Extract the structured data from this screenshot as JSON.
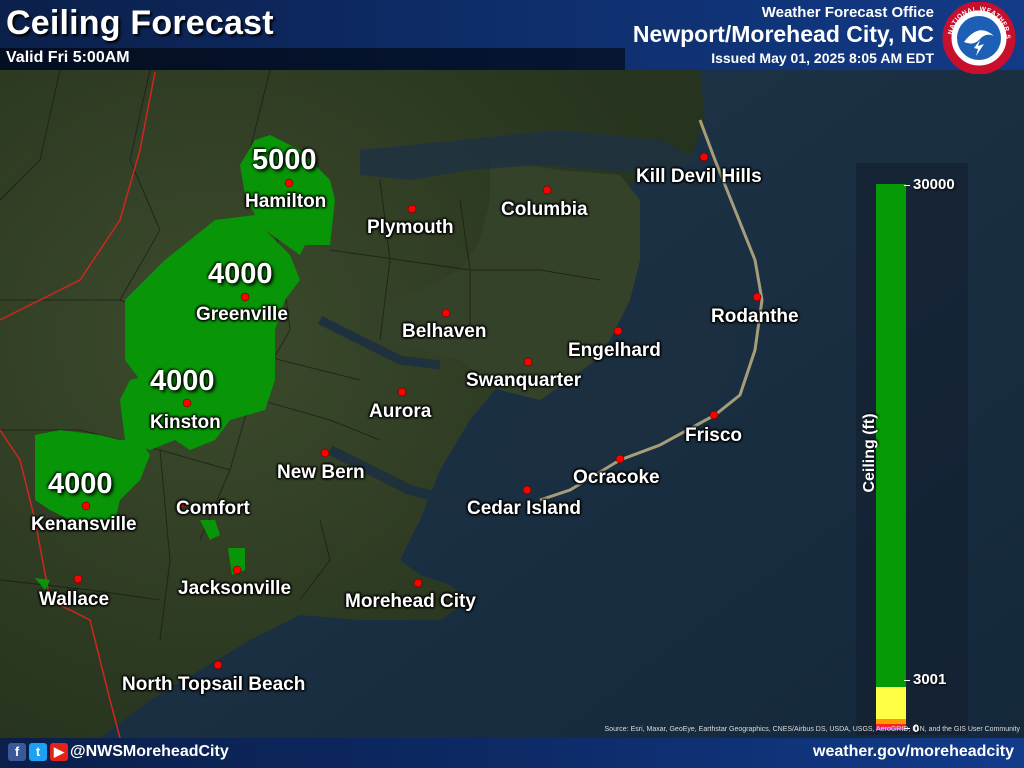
{
  "header": {
    "title": "Ceiling Forecast",
    "valid": "Valid Fri 5:00AM",
    "office_line": "Weather Forecast Office",
    "office_name": "Newport/Morehead City, NC",
    "issued": "Issued May 01, 2025 8:05 AM EDT",
    "logo_text": "NATIONAL WEATHER SERVICE"
  },
  "legend": {
    "title": "Ceiling (ft)",
    "labels": {
      "top": "30000",
      "mid": "3001",
      "bottom": "0"
    },
    "colors": {
      "high": "#079a07",
      "mid_low": "#ffff44",
      "low": "#ff9900",
      "very_low": "#ff2222",
      "lowest": "#cc33cc"
    }
  },
  "cities": [
    "Hamilton",
    "Plymouth",
    "Columbia",
    "Kill Devil Hills",
    "Greenville",
    "Belhaven",
    "Engelhard",
    "Rodanthe",
    "Swanquarter",
    "Aurora",
    "Kinston",
    "Frisco",
    "New Bern",
    "Ocracoke",
    "Kenansville",
    "Comfort",
    "Cedar Island",
    "Jacksonville",
    "Wallace",
    "Morehead City",
    "North Topsail Beach"
  ],
  "ceilings": [
    {
      "city": "Hamilton",
      "value": "5000"
    },
    {
      "city": "Greenville",
      "value": "4000"
    },
    {
      "city": "Kinston",
      "value": "4000"
    },
    {
      "city": "Kenansville",
      "value": "4000"
    }
  ],
  "colors": {
    "forecast_fill": "#079a07",
    "city_dot": "#ff0000",
    "header": "#0d2a66"
  },
  "footer": {
    "handle": "@NWSMoreheadCity",
    "website": "weather.gov/moreheadcity",
    "icons": [
      "facebook-icon",
      "twitter-icon",
      "youtube-icon"
    ],
    "source": "Source: Esri, Maxar, GeoEye, Earthstar Geographics, CNES/Airbus DS, USDA, USGS, AeroGRID, IGN, and the GIS User Community"
  }
}
